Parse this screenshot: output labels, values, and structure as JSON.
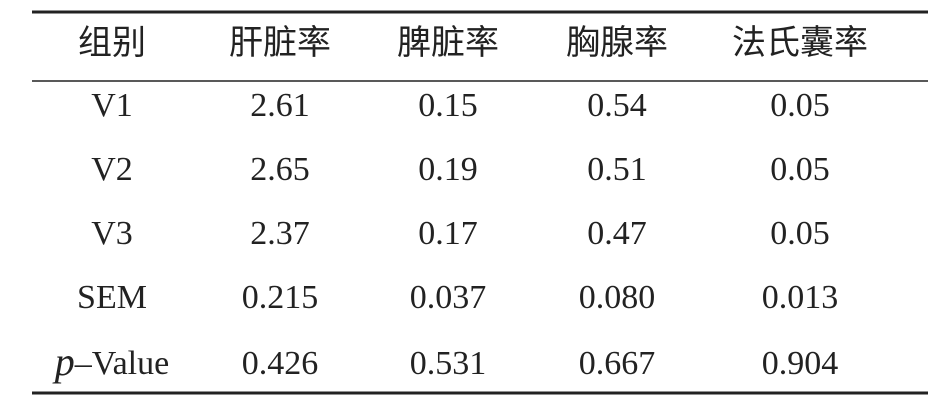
{
  "table": {
    "header": [
      "组别",
      "肝脏率",
      "脾脏率",
      "胸腺率",
      "法氏囊率"
    ],
    "rows": [
      [
        "V1",
        "2.61",
        "0.15",
        "0.54",
        "0.05"
      ],
      [
        "V2",
        "2.65",
        "0.19",
        "0.51",
        "0.05"
      ],
      [
        "V3",
        "2.37",
        "0.17",
        "0.47",
        "0.05"
      ],
      [
        "SEM",
        "0.215",
        "0.037",
        "0.080",
        "0.013"
      ],
      [
        [
          "p",
          "–Value"
        ],
        "0.426",
        "0.531",
        "0.667",
        "0.904"
      ]
    ]
  }
}
